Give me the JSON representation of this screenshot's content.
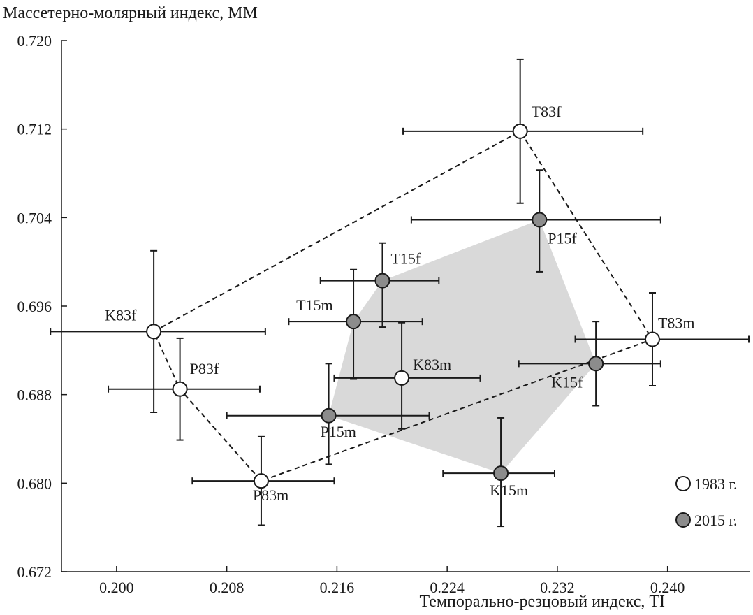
{
  "chart_data": {
    "type": "scatter",
    "xlabel": "Темпорально-резцовый индекс, TI",
    "ylabel": "Массетерно-молярный индекс, MM",
    "xlim": [
      0.196,
      0.246
    ],
    "ylim": [
      0.672,
      0.72
    ],
    "x_ticks": [
      "0.200",
      "0.208",
      "0.216",
      "0.224",
      "0.232",
      "0.240"
    ],
    "y_ticks": [
      "0.720",
      "0.712",
      "0.704",
      "0.696",
      "0.688",
      "0.680",
      "0.672"
    ],
    "grid": false,
    "legend_position": "bottom-right",
    "colors": {
      "series_1983": "#ffffff",
      "series_2015": "#8c8c8c",
      "hull_2015": "#d9d9d9",
      "ink": "#1a1a1a"
    },
    "series": [
      {
        "name": "1983 г.",
        "marker": "open-circle",
        "points": [
          {
            "label": "T83f",
            "x": 0.2293,
            "y": 0.7118,
            "x_err": [
              0.2208,
              0.2382
            ],
            "y_err": [
              0.7053,
              0.7183
            ]
          },
          {
            "label": "K83f",
            "x": 0.2027,
            "y": 0.6937,
            "x_err": [
              0.1952,
              0.2108
            ],
            "y_err": [
              0.6864,
              0.701
            ]
          },
          {
            "label": "P83f",
            "x": 0.2046,
            "y": 0.6885,
            "x_err": [
              0.1994,
              0.2104
            ],
            "y_err": [
              0.6839,
              0.6931
            ]
          },
          {
            "label": "P83m",
            "x": 0.2105,
            "y": 0.6802,
            "x_err": [
              0.2055,
              0.2158
            ],
            "y_err": [
              0.6762,
              0.6842
            ]
          },
          {
            "label": "K83m",
            "x": 0.2207,
            "y": 0.6895,
            "x_err": [
              0.2158,
              0.2264
            ],
            "y_err": [
              0.6849,
              0.6945
            ]
          },
          {
            "label": "T83m",
            "x": 0.2389,
            "y": 0.693,
            "x_err": [
              0.2333,
              0.2459
            ],
            "y_err": [
              0.6888,
              0.6972
            ]
          }
        ]
      },
      {
        "name": "2015 г.",
        "marker": "filled-circle",
        "points": [
          {
            "label": "P15f",
            "x": 0.2307,
            "y": 0.7038,
            "x_err": [
              0.2214,
              0.2395
            ],
            "y_err": [
              0.6991,
              0.7083
            ]
          },
          {
            "label": "T15f",
            "x": 0.2193,
            "y": 0.6983,
            "x_err": [
              0.2148,
              0.2234
            ],
            "y_err": [
              0.6941,
              0.7017
            ]
          },
          {
            "label": "T15m",
            "x": 0.2172,
            "y": 0.6946,
            "x_err": [
              0.2125,
              0.2222
            ],
            "y_err": [
              0.6894,
              0.6993
            ]
          },
          {
            "label": "P15m",
            "x": 0.2154,
            "y": 0.6861,
            "x_err": [
              0.208,
              0.2227
            ],
            "y_err": [
              0.6817,
              0.6908
            ]
          },
          {
            "label": "K15m",
            "x": 0.2279,
            "y": 0.6809,
            "x_err": [
              0.2237,
              0.2318
            ],
            "y_err": [
              0.6761,
              0.6859
            ]
          },
          {
            "label": "K15f",
            "x": 0.2348,
            "y": 0.6908,
            "x_err": [
              0.2292,
              0.2395
            ],
            "y_err": [
              0.687,
              0.6946
            ]
          }
        ]
      }
    ],
    "outline_1983_order": [
      "K83f",
      "T83f",
      "T83m",
      "P83m",
      "P83f",
      "K83f"
    ],
    "hull_2015_order": [
      "T15f",
      "P15f",
      "K15f",
      "K15m",
      "P15m",
      "T15m"
    ]
  }
}
